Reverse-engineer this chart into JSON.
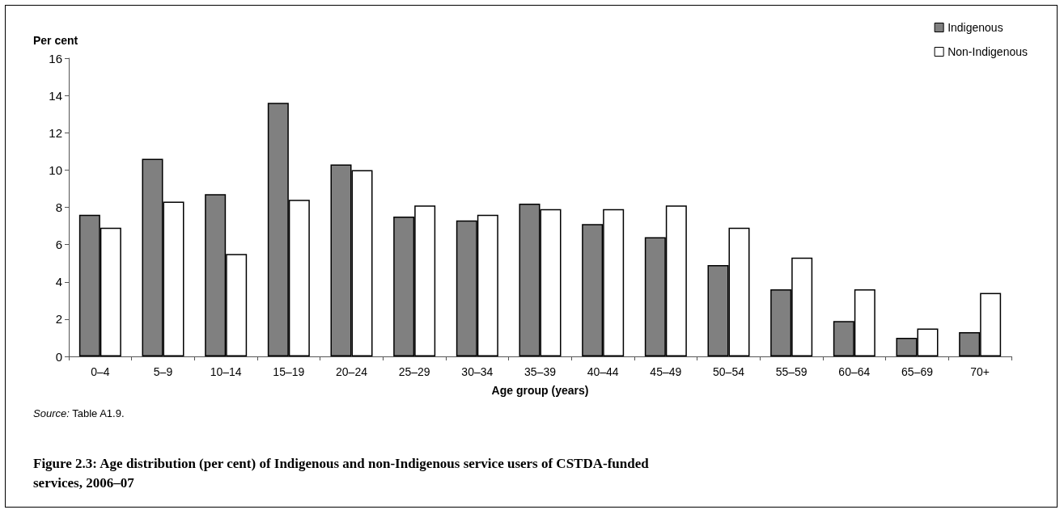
{
  "chart_data": {
    "type": "bar",
    "title": "Figure 2.3: Age distribution (per cent) of Indigenous and non-Indigenous service users of CSTDA-funded services, 2006–07",
    "xlabel": "Age group (years)",
    "ylabel": "Per cent",
    "annotations": [
      "Source: Table A1.9."
    ],
    "categories": [
      "0–4",
      "5–9",
      "10–14",
      "15–19",
      "20–24",
      "25–29",
      "30–34",
      "35–39",
      "40–44",
      "45–49",
      "50–54",
      "55–59",
      "60–64",
      "65–69",
      "70+"
    ],
    "series": [
      {
        "name": "Indigenous",
        "color": "#808080",
        "values": [
          7.6,
          10.6,
          8.7,
          13.6,
          10.3,
          7.5,
          7.3,
          8.2,
          7.1,
          6.4,
          4.9,
          3.6,
          1.9,
          1.0,
          1.3
        ]
      },
      {
        "name": "Non-Indigenous",
        "color": "#ffffff",
        "values": [
          6.9,
          8.3,
          5.5,
          8.4,
          10.0,
          8.1,
          7.6,
          7.9,
          7.9,
          8.1,
          6.9,
          5.3,
          3.6,
          1.5,
          3.4
        ]
      }
    ],
    "ylim": [
      0,
      16
    ],
    "yticks": [
      0,
      2,
      4,
      6,
      8,
      10,
      12,
      14,
      16
    ],
    "grid": false,
    "legend": "top right"
  }
}
